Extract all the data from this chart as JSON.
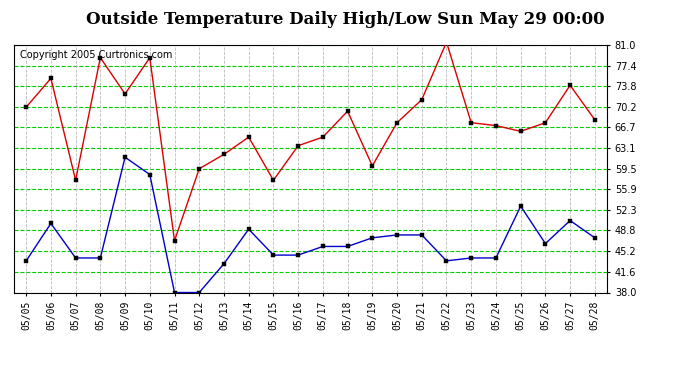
{
  "title": "Outside Temperature Daily High/Low Sun May 29 00:00",
  "copyright": "Copyright 2005 Curtronics.com",
  "x_labels": [
    "05/05",
    "05/06",
    "05/07",
    "05/08",
    "05/09",
    "05/10",
    "05/11",
    "05/12",
    "05/13",
    "05/14",
    "05/15",
    "05/16",
    "05/17",
    "05/18",
    "05/19",
    "05/20",
    "05/21",
    "05/22",
    "05/23",
    "05/24",
    "05/25",
    "05/26",
    "05/27",
    "05/28"
  ],
  "high_values": [
    70.2,
    75.2,
    57.5,
    78.8,
    72.5,
    78.8,
    47.0,
    59.5,
    62.0,
    65.0,
    57.5,
    63.5,
    65.0,
    69.5,
    60.0,
    67.5,
    71.5,
    81.5,
    67.5,
    67.0,
    66.0,
    67.5,
    74.0,
    68.0
  ],
  "low_values": [
    43.5,
    50.0,
    44.0,
    44.0,
    61.5,
    58.5,
    38.0,
    38.0,
    43.0,
    49.0,
    44.5,
    44.5,
    46.0,
    46.0,
    47.5,
    48.0,
    48.0,
    43.5,
    44.0,
    44.0,
    53.0,
    46.5,
    50.5,
    47.5
  ],
  "y_ticks": [
    38.0,
    41.6,
    45.2,
    48.8,
    52.3,
    55.9,
    59.5,
    63.1,
    66.7,
    70.2,
    73.8,
    77.4,
    81.0
  ],
  "y_min": 38.0,
  "y_max": 81.0,
  "high_color": "#dd0000",
  "low_color": "#0000cc",
  "hgrid_color": "#00cc00",
  "vgrid_color": "#bbbbbb",
  "bg_color": "#ffffff",
  "title_fontsize": 12,
  "tick_fontsize": 7,
  "copyright_fontsize": 7
}
